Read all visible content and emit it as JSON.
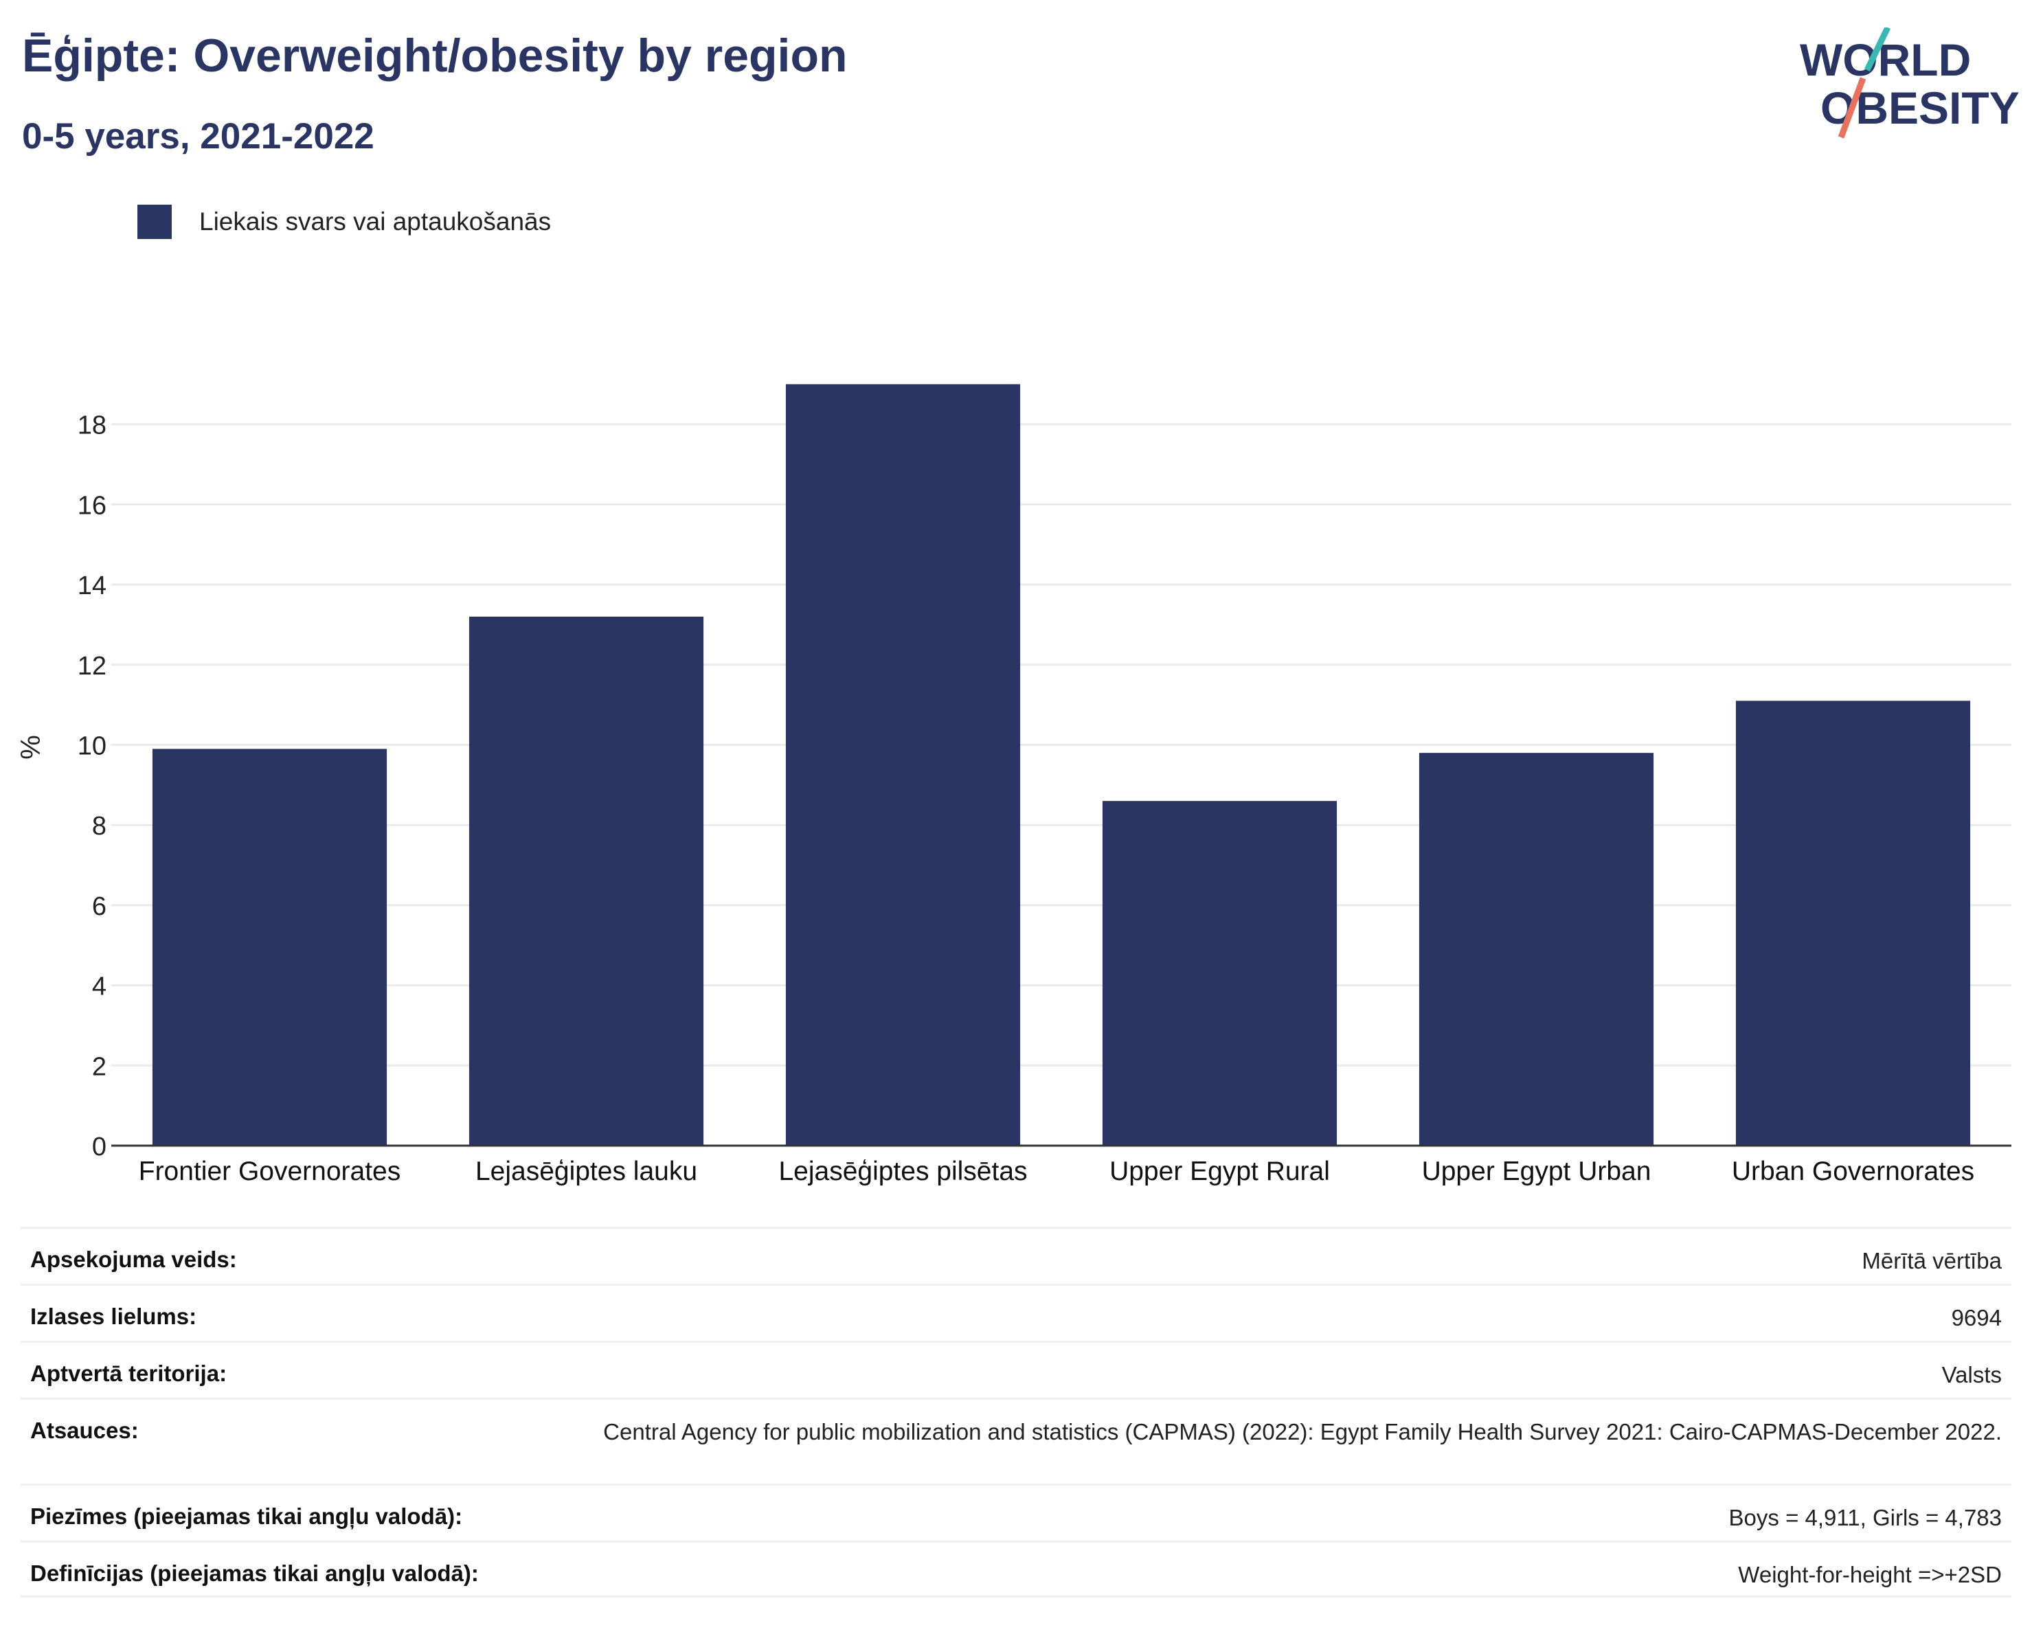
{
  "header": {
    "title": "Ēģipte: Overweight/obesity by region",
    "subtitle": "0-5 years, 2021-2022"
  },
  "logo": {
    "line1": "WORLD",
    "line2": "OBESITY",
    "colors": [
      "#2a3563",
      "#3bb7b3",
      "#e8715f"
    ]
  },
  "legend": {
    "label": "Liekais svars vai aptaukošanās",
    "color": "#2a3563"
  },
  "chart_data": {
    "type": "bar",
    "categories": [
      "Frontier Governorates",
      "Lejasēģiptes lauku",
      "Lejasēģiptes pilsētas",
      "Upper Egypt Rural",
      "Upper Egypt Urban",
      "Urban Governorates"
    ],
    "series": [
      {
        "name": "Liekais svars vai aptaukošanās",
        "values": [
          9.9,
          13.2,
          19.0,
          8.6,
          9.8,
          11.1
        ],
        "color": "#2a3563"
      }
    ],
    "ylabel": "%",
    "ylim": [
      0,
      20
    ],
    "yticks": [
      0,
      2,
      4,
      6,
      8,
      10,
      12,
      14,
      16,
      18
    ],
    "grid": true,
    "legend_position": "top-left"
  },
  "table": {
    "rows": [
      {
        "label": "Apsekojuma veids:",
        "value": "Mērītā vērtība"
      },
      {
        "label": "Izlases lielums:",
        "value": "9694"
      },
      {
        "label": "Aptvertā teritorija:",
        "value": "Valsts"
      },
      {
        "label": "Atsauces:",
        "value": "Central Agency for public mobilization and statistics (CAPMAS) (2022): Egypt Family Health Survey 2021: Cairo-CAPMAS-December 2022."
      },
      {
        "label": "Piezīmes (pieejamas tikai angļu valodā):",
        "value": "Boys = 4,911, Girls = 4,783"
      },
      {
        "label": "Definīcijas (pieejamas tikai angļu valodā):",
        "value": "Weight-for-height =>+2SD"
      }
    ]
  }
}
